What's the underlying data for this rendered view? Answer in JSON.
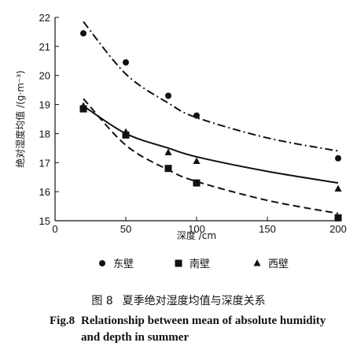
{
  "chart_data": {
    "type": "scatter",
    "xlabel": "深度 /cm",
    "ylabel": "绝对湿度均值 /(g·m⁻³)",
    "xlim": [
      0,
      200
    ],
    "ylim": [
      15,
      22
    ],
    "xticks": [
      0,
      50,
      100,
      150,
      200
    ],
    "xtick_labels": [
      "0",
      "50",
      "100",
      "150",
      "200"
    ],
    "yticks": [
      15,
      16,
      17,
      18,
      19,
      20,
      21,
      22
    ],
    "ytick_labels": [
      "15",
      "16",
      "17",
      "18",
      "19",
      "20",
      "21",
      "22"
    ],
    "legend_position": "bottom",
    "series": [
      {
        "name": "东壁",
        "marker": "circle",
        "line_style": "dash-dot",
        "x": [
          20,
          50,
          80,
          100,
          200
        ],
        "y": [
          21.45,
          20.45,
          19.3,
          18.62,
          17.15
        ],
        "fit": {
          "x": [
            20,
            50,
            80,
            100,
            150,
            200
          ],
          "y": [
            21.85,
            20.05,
            19.05,
            18.55,
            17.85,
            17.4
          ]
        }
      },
      {
        "name": "南壁",
        "marker": "square",
        "line_style": "dashed",
        "x": [
          20,
          50,
          80,
          100,
          200
        ],
        "y": [
          18.85,
          17.95,
          16.8,
          16.3,
          15.1
        ],
        "fit": {
          "x": [
            20,
            50,
            80,
            100,
            150,
            200
          ],
          "y": [
            19.2,
            17.6,
            16.75,
            16.35,
            15.7,
            15.25
          ]
        }
      },
      {
        "name": "西壁",
        "marker": "triangle",
        "line_style": "solid",
        "x": [
          20,
          50,
          80,
          100,
          200
        ],
        "y": [
          18.95,
          18.05,
          17.35,
          17.05,
          16.1
        ],
        "fit": {
          "x": [
            20,
            50,
            80,
            100,
            150,
            200
          ],
          "y": [
            18.95,
            18.0,
            17.5,
            17.2,
            16.7,
            16.3
          ]
        }
      }
    ]
  },
  "caption": {
    "zh_label": "图 8",
    "zh_title": "夏季绝对湿度均值与深度关系",
    "en_label": "Fig.8",
    "en_title": "Relationship between mean of absolute humidity and depth in summer"
  }
}
